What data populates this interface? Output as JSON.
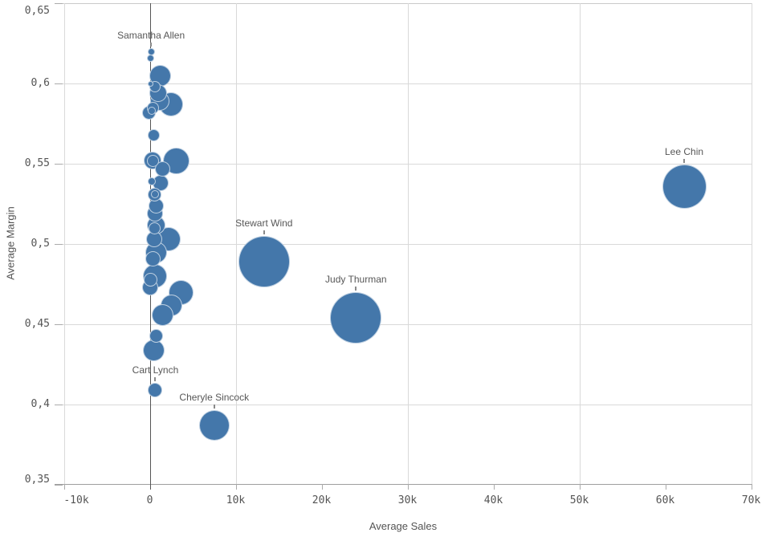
{
  "chart_data": {
    "type": "scatter",
    "title": "",
    "xlabel": "Average Sales",
    "ylabel": "Average Margin",
    "x_range": [
      -11100,
      70300
    ],
    "y_range": [
      0.35,
      0.65
    ],
    "grid": "on",
    "legend": "none",
    "x_ticks": [
      {
        "v": -10000,
        "label": "-10k"
      },
      {
        "v": 0,
        "label": "0"
      },
      {
        "v": 10000,
        "label": "10k"
      },
      {
        "v": 20000,
        "label": "20k"
      },
      {
        "v": 30000,
        "label": "30k"
      },
      {
        "v": 40000,
        "label": "40k"
      },
      {
        "v": 50000,
        "label": "50k"
      },
      {
        "v": 60000,
        "label": "60k"
      },
      {
        "v": 70000,
        "label": "70k"
      }
    ],
    "y_ticks": [
      {
        "v": 0.65,
        "label": "0,65"
      },
      {
        "v": 0.6,
        "label": "0,6"
      },
      {
        "v": 0.55,
        "label": "0,55"
      },
      {
        "v": 0.5,
        "label": "0,5"
      },
      {
        "v": 0.45,
        "label": "0,45"
      },
      {
        "v": 0.4,
        "label": "0,4"
      },
      {
        "v": 0.35,
        "label": "0,35"
      }
    ],
    "x_gridline_values": [
      -10000,
      10000,
      30000,
      50000,
      70000
    ],
    "y_gridline_values": [
      0.6,
      0.55,
      0.5,
      0.45,
      0.4
    ],
    "zero_line_x": 0,
    "colors": {
      "bubble_fill": "#4477aa",
      "bubble_stroke": "rgba(255,255,255,0.65)",
      "gridline": "#d9d9d9",
      "axis_line": "#9e9e9e",
      "zero_line": "#555555",
      "tick_text": "#545454",
      "label_text": "#575757"
    },
    "points": [
      {
        "name": "Samantha Allen",
        "sales": 150,
        "margin": 0.62,
        "r": 4.5
      },
      {
        "sales": 50,
        "margin": 0.616,
        "r": 4.5
      },
      {
        "sales": 1170,
        "margin": 0.605,
        "r": 13.5
      },
      {
        "sales": 140,
        "margin": 0.6,
        "r": 3.5
      },
      {
        "sales": 600,
        "margin": 0.598,
        "r": 7
      },
      {
        "sales": 980,
        "margin": 0.594,
        "r": 11
      },
      {
        "sales": 1170,
        "margin": 0.589,
        "r": 12
      },
      {
        "sales": 2430,
        "margin": 0.587,
        "r": 15
      },
      {
        "sales": 420,
        "margin": 0.585,
        "r": 7.5
      },
      {
        "sales": 230,
        "margin": 0.583,
        "r": 5
      },
      {
        "sales": -140,
        "margin": 0.582,
        "r": 8.5
      },
      {
        "sales": 510,
        "margin": 0.568,
        "r": 7.5
      },
      {
        "sales": 330,
        "margin": 0.552,
        "r": 11
      },
      {
        "sales": 330,
        "margin": 0.552,
        "r": 7.5
      },
      {
        "sales": 3130,
        "margin": 0.552,
        "r": 16.5
      },
      {
        "sales": 1450,
        "margin": 0.547,
        "r": 9.5
      },
      {
        "sales": 230,
        "margin": 0.539,
        "r": 5
      },
      {
        "sales": 1260,
        "margin": 0.538,
        "r": 10
      },
      {
        "sales": 600,
        "margin": 0.531,
        "r": 8.5
      },
      {
        "sales": 600,
        "margin": 0.531,
        "r": 5
      },
      {
        "sales": 790,
        "margin": 0.524,
        "r": 9.5
      },
      {
        "sales": 600,
        "margin": 0.519,
        "r": 10
      },
      {
        "sales": 790,
        "margin": 0.512,
        "r": 11.5
      },
      {
        "sales": 600,
        "margin": 0.51,
        "r": 7.5
      },
      {
        "sales": 2200,
        "margin": 0.503,
        "r": 15
      },
      {
        "sales": 510,
        "margin": 0.503,
        "r": 10
      },
      {
        "sales": 790,
        "margin": 0.495,
        "r": 13.5
      },
      {
        "sales": 330,
        "margin": 0.491,
        "r": 9.5
      },
      {
        "sales": 600,
        "margin": 0.48,
        "r": 15
      },
      {
        "sales": 140,
        "margin": 0.478,
        "r": 8.5
      },
      {
        "sales": 50,
        "margin": 0.473,
        "r": 10
      },
      {
        "sales": 3600,
        "margin": 0.47,
        "r": 15.5
      },
      {
        "sales": 2570,
        "margin": 0.462,
        "r": 13.5
      },
      {
        "sales": 1540,
        "margin": 0.456,
        "r": 13.5
      },
      {
        "sales": 790,
        "margin": 0.443,
        "r": 8.5
      },
      {
        "sales": 510,
        "margin": 0.434,
        "r": 13.5
      },
      {
        "name": "Cart Lynch",
        "sales": 650,
        "margin": 0.409,
        "r": 9
      },
      {
        "name": "Cheryle Sincock",
        "sales": 7500,
        "margin": 0.387,
        "r": 19
      },
      {
        "name": "Stewart Wind",
        "sales": 13300,
        "margin": 0.489,
        "r": 32
      },
      {
        "name": "Judy Thurman",
        "sales": 24000,
        "margin": 0.454,
        "r": 32
      },
      {
        "name": "Lee Chin",
        "sales": 62200,
        "margin": 0.536,
        "r": 27.5
      }
    ]
  }
}
